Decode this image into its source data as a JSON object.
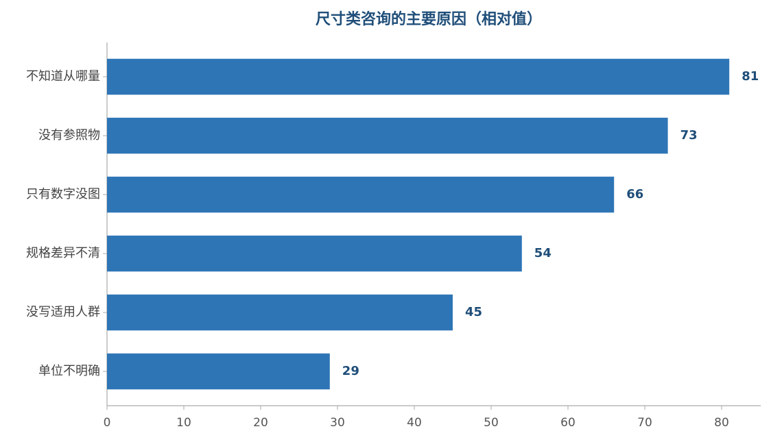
{
  "chart_data": {
    "type": "barh",
    "title": "尺寸类咨询的主要原因（相对值）",
    "categories": [
      "不知道从哪量",
      "没有参照物",
      "只有数字没图",
      "规格差异不清",
      "没写适用人群",
      "单位不明确"
    ],
    "values": [
      81,
      73,
      66,
      54,
      45,
      29
    ],
    "color": "#2e75b6",
    "xlim": [
      0,
      85
    ],
    "xticks": [
      0,
      10,
      20,
      30,
      40,
      50,
      60,
      70,
      80
    ],
    "grid": false
  }
}
